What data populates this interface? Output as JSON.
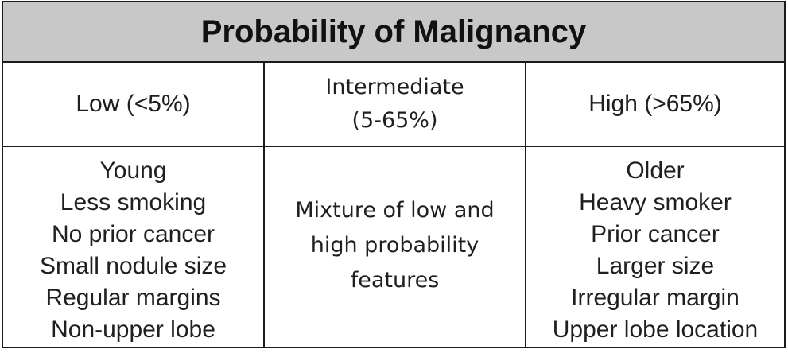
{
  "table": {
    "title": "Probability of Malignancy",
    "columns": [
      {
        "header_lines": [
          "Low (<5%)"
        ],
        "features": [
          "Young",
          "Less smoking",
          "No prior cancer",
          "Small nodule size",
          "Regular margins",
          "Non-upper lobe"
        ]
      },
      {
        "header_lines": [
          "Intermediate",
          "(5-65%)"
        ],
        "features": [
          "Mixture of low and",
          "high probability",
          "features"
        ]
      },
      {
        "header_lines": [
          "High (>65%)"
        ],
        "features": [
          "Older",
          "Heavy smoker",
          "Prior cancer",
          "Larger size",
          "Irregular margin",
          "Upper lobe location"
        ]
      }
    ]
  },
  "colors": {
    "title_background": "#c8c8c8",
    "border": "#1a1a1a",
    "text": "#1f1f1f"
  }
}
